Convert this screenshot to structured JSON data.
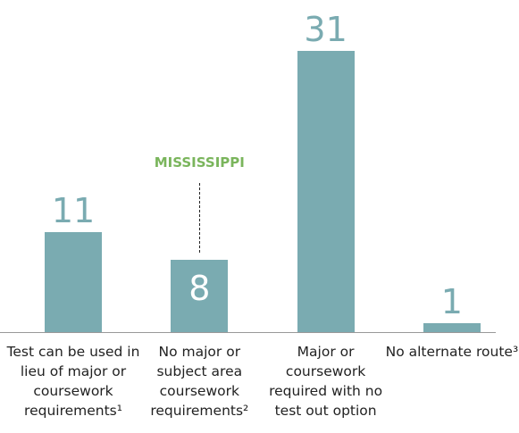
{
  "chart_data": {
    "type": "bar",
    "categories": [
      "Test can be used in lieu of major or coursework requirements¹",
      "No major or subject area coursework requirements²",
      "Major or coursework required with no test out option",
      "No alternate route³"
    ],
    "values": [
      11,
      8,
      31,
      1
    ],
    "color": "#7aabb1",
    "annotations": [
      {
        "text": "MISSISSIPPI",
        "color": "#7ab55c"
      }
    ]
  }
}
